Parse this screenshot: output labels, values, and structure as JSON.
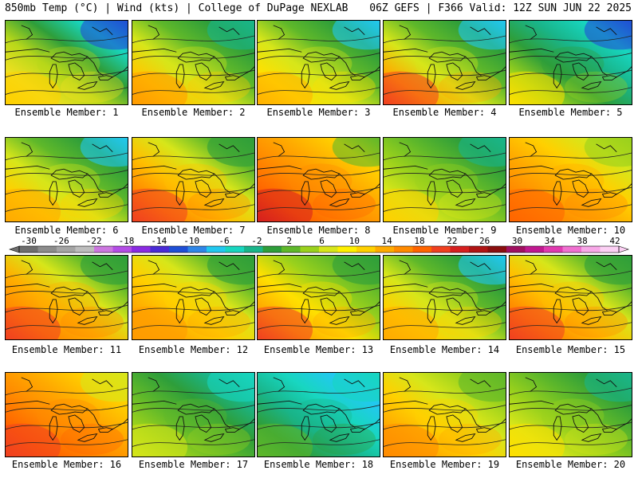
{
  "header": {
    "left": "850mb Temp (°C) | Wind (kts) | College of DuPage NEXLAB",
    "right": "06Z GEFS | F366 Valid: 12Z SUN JUN 22 2025"
  },
  "legend": {
    "ticks": [
      "-30",
      "-26",
      "-22",
      "-18",
      "-14",
      "-10",
      "-6",
      "-2",
      "2",
      "6",
      "10",
      "14",
      "18",
      "22",
      "26",
      "30",
      "34",
      "38",
      "42"
    ],
    "colors": [
      "#6e6e6e",
      "#8c8c8c",
      "#a5a5a5",
      "#bdbdbd",
      "#cc77e0",
      "#b44de6",
      "#8a2be2",
      "#4a2bd6",
      "#1f4fd6",
      "#2f86e8",
      "#22c8f0",
      "#18d6c0",
      "#19b58a",
      "#2e9e3a",
      "#5fb82a",
      "#9ad11c",
      "#d7e61a",
      "#fff000",
      "#ffd000",
      "#ffaa00",
      "#ff8a00",
      "#ff6500",
      "#f04020",
      "#d61f1f",
      "#b01414",
      "#8a0e0e",
      "#a01060",
      "#c01890",
      "#e03ab0",
      "#f070d0",
      "#f8a8e8",
      "#fcd0f4"
    ]
  },
  "members": [
    {
      "label": "Ensemble Member: 1",
      "scheme": [
        "#ffd000",
        "#f0e020",
        "#b8d81a",
        "#2e9e3a",
        "#18d6c0",
        "#1f4fd6"
      ]
    },
    {
      "label": "Ensemble Member: 2",
      "scheme": [
        "#ff9a00",
        "#ffc800",
        "#d7e61a",
        "#5fb82a",
        "#2e9e3a",
        "#19b58a"
      ]
    },
    {
      "label": "Ensemble Member: 3",
      "scheme": [
        "#ffb000",
        "#ffe000",
        "#d7e61a",
        "#5fb82a",
        "#2e9e3a",
        "#22c8f0"
      ]
    },
    {
      "label": "Ensemble Member: 4",
      "scheme": [
        "#f04020",
        "#ffaa00",
        "#d7e61a",
        "#5fb82a",
        "#2e9e3a",
        "#22c8f0"
      ]
    },
    {
      "label": "Ensemble Member: 5",
      "scheme": [
        "#ffe000",
        "#9ad11c",
        "#2e9e3a",
        "#19b58a",
        "#18d6c0",
        "#1f4fd6"
      ]
    },
    {
      "label": "Ensemble Member: 6",
      "scheme": [
        "#ffaa00",
        "#ffd000",
        "#d7e61a",
        "#5fb82a",
        "#2e9e3a",
        "#22c8f0"
      ]
    },
    {
      "label": "Ensemble Member: 7",
      "scheme": [
        "#f04020",
        "#ff8a00",
        "#ffc000",
        "#d7e61a",
        "#5fb82a",
        "#2e9e3a"
      ]
    },
    {
      "label": "Ensemble Member: 8",
      "scheme": [
        "#d61f1f",
        "#ff6500",
        "#ff8a00",
        "#ffaa00",
        "#ffd000",
        "#5fb82a"
      ]
    },
    {
      "label": "Ensemble Member: 9",
      "scheme": [
        "#ffd000",
        "#d7e61a",
        "#9ad11c",
        "#5fb82a",
        "#2e9e3a",
        "#19b58a"
      ]
    },
    {
      "label": "Ensemble Member: 10",
      "scheme": [
        "#ff6500",
        "#ff8a00",
        "#ffaa00",
        "#ffd000",
        "#d7e61a",
        "#9ad11c"
      ]
    },
    {
      "label": "Ensemble Member: 11",
      "scheme": [
        "#f04020",
        "#ff8a00",
        "#ffb000",
        "#d7e61a",
        "#5fb82a",
        "#2e9e3a"
      ]
    },
    {
      "label": "Ensemble Member: 12",
      "scheme": [
        "#ff9a00",
        "#ffaa00",
        "#ffd000",
        "#d7e61a",
        "#5fb82a",
        "#2e9e3a"
      ]
    },
    {
      "label": "Ensemble Member: 13",
      "scheme": [
        "#f04020",
        "#ffaa00",
        "#ffe000",
        "#9ad11c",
        "#5fb82a",
        "#2e9e3a"
      ]
    },
    {
      "label": "Ensemble Member: 14",
      "scheme": [
        "#ffaa00",
        "#ffd000",
        "#d7e61a",
        "#5fb82a",
        "#2e9e3a",
        "#22c8f0"
      ]
    },
    {
      "label": "Ensemble Member: 15",
      "scheme": [
        "#f04020",
        "#ff8a00",
        "#ffc000",
        "#d7e61a",
        "#5fb82a",
        "#2e9e3a"
      ]
    },
    {
      "label": "Ensemble Member: 16",
      "scheme": [
        "#f04020",
        "#ff6500",
        "#ff8a00",
        "#ffaa00",
        "#ffd000",
        "#d7e61a"
      ]
    },
    {
      "label": "Ensemble Member: 17",
      "scheme": [
        "#d7e61a",
        "#9ad11c",
        "#5fb82a",
        "#2e9e3a",
        "#19b58a",
        "#18d6c0"
      ]
    },
    {
      "label": "Ensemble Member: 18",
      "scheme": [
        "#5fb82a",
        "#2e9e3a",
        "#19b58a",
        "#18d6c0",
        "#22c8f0",
        "#18d6c0"
      ]
    },
    {
      "label": "Ensemble Member: 19",
      "scheme": [
        "#ff8a00",
        "#ffaa00",
        "#ffd000",
        "#d7e61a",
        "#9ad11c",
        "#5fb82a"
      ]
    },
    {
      "label": "Ensemble Member: 20",
      "scheme": [
        "#ffe000",
        "#d7e61a",
        "#9ad11c",
        "#5fb82a",
        "#2e9e3a",
        "#19b58a"
      ]
    }
  ]
}
